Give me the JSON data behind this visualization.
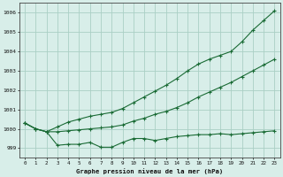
{
  "title": "Graphe pression niveau de la mer (hPa)",
  "background_color": "#d8eee9",
  "grid_color": "#aacfc5",
  "line_color": "#1a6b35",
  "x_ticks": [
    0,
    1,
    2,
    3,
    4,
    5,
    6,
    7,
    8,
    9,
    10,
    11,
    12,
    13,
    14,
    15,
    16,
    17,
    18,
    19,
    20,
    21,
    22,
    23
  ],
  "ylim": [
    998.5,
    1006.5
  ],
  "yticks": [
    999,
    1000,
    1001,
    1002,
    1003,
    1004,
    1005,
    1006
  ],
  "series": [
    [
      1000.3,
      1000.0,
      999.85,
      999.15,
      999.2,
      999.2,
      999.3,
      999.05,
      999.05,
      999.3,
      999.5,
      999.5,
      999.4,
      999.5,
      999.6,
      999.65,
      999.7,
      999.7,
      999.75,
      999.7,
      999.75,
      999.8,
      999.85,
      999.9
    ],
    [
      1000.3,
      1000.0,
      999.85,
      999.85,
      999.9,
      999.95,
      1000.0,
      1000.05,
      1000.1,
      1000.2,
      1000.4,
      1000.55,
      1000.75,
      1000.9,
      1001.1,
      1001.35,
      1001.65,
      1001.9,
      1002.15,
      1002.4,
      1002.7,
      1003.0,
      1003.3,
      1003.6
    ],
    [
      1000.3,
      1000.0,
      999.85,
      1000.1,
      1000.35,
      1000.5,
      1000.65,
      1000.75,
      1000.85,
      1001.05,
      1001.35,
      1001.65,
      1001.95,
      1002.25,
      1002.6,
      1003.0,
      1003.35,
      1003.6,
      1003.8,
      1004.0,
      1004.5,
      1005.1,
      1005.6,
      1006.1
    ]
  ]
}
